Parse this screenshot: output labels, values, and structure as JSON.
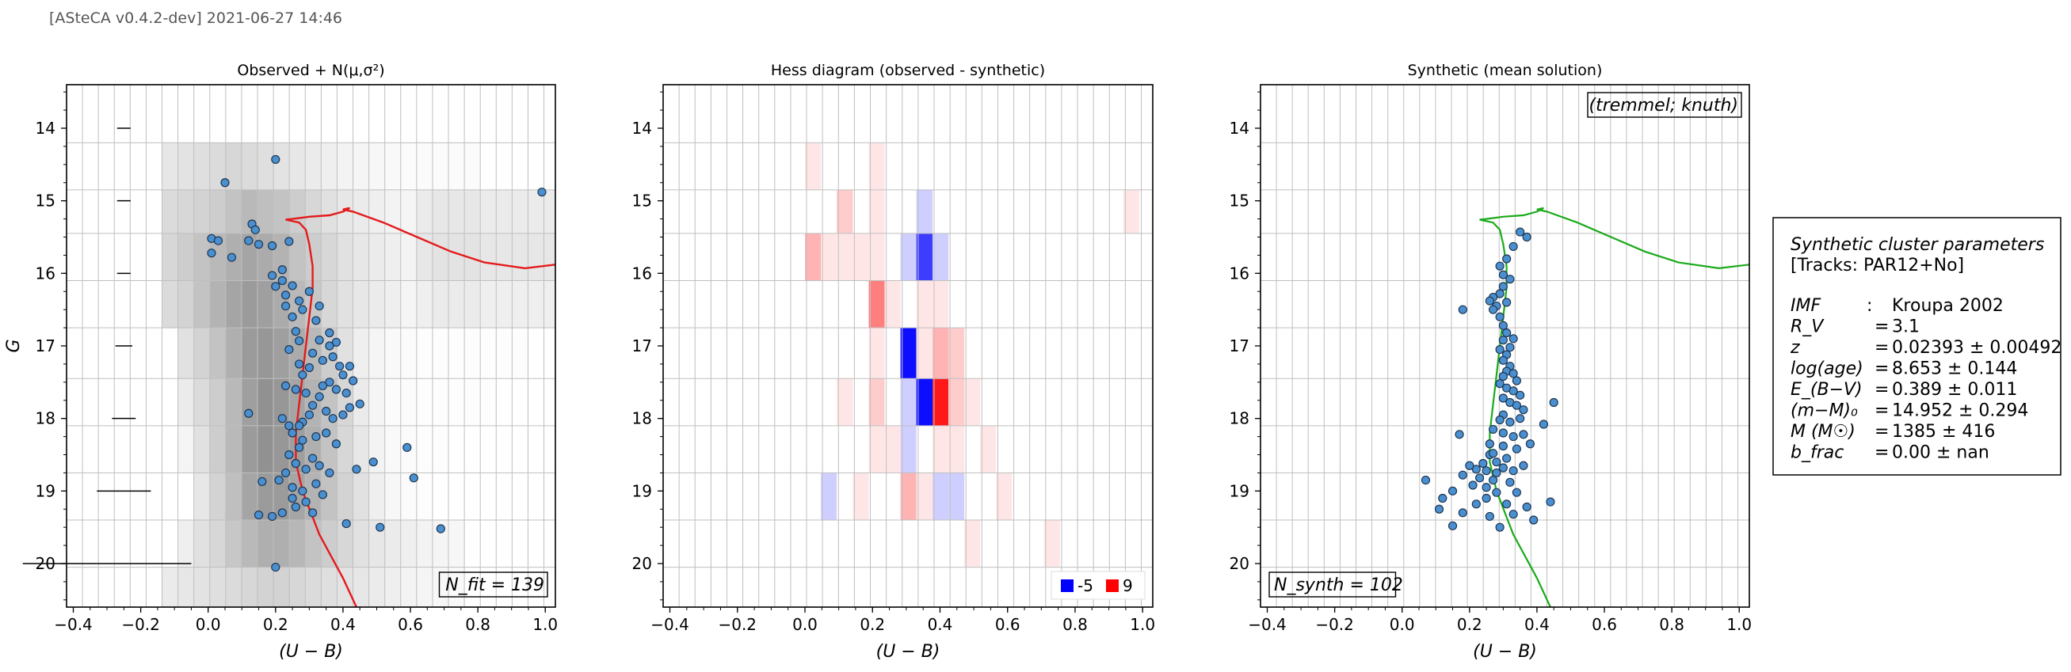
{
  "header": "[ASteCA v0.4.2-dev] 2021-06-27 14:46",
  "chart_data": [
    {
      "type": "scatter",
      "title": "Observed + N(μ,σ²)",
      "xlabel": "(U − B)",
      "ylabel": "G",
      "xlim": [
        -0.42,
        1.03
      ],
      "ylim": [
        20.6,
        13.4
      ],
      "y_inverted": true,
      "xticks": [
        -0.4,
        -0.2,
        0.0,
        0.2,
        0.4,
        0.6,
        0.8,
        1.0
      ],
      "yticks": [
        14,
        15,
        16,
        17,
        18,
        19,
        20
      ],
      "grid": true,
      "annotation": "N_fit = 139",
      "error_bars": [
        {
          "mag": 14.0,
          "half_width": 0.02
        },
        {
          "mag": 15.0,
          "half_width": 0.02
        },
        {
          "mag": 16.0,
          "half_width": 0.02
        },
        {
          "mag": 17.0,
          "half_width": 0.025
        },
        {
          "mag": 18.0,
          "half_width": 0.035
        },
        {
          "mag": 19.0,
          "half_width": 0.08
        },
        {
          "mag": 20.0,
          "half_width": 0.2
        }
      ],
      "background_density_bins": "grey 2D histogram of the observed CMD, darkest around (U-B) 0.2-0.4, G 16-19",
      "points": [
        [
          0.05,
          14.75
        ],
        [
          0.2,
          14.43
        ],
        [
          0.99,
          14.88
        ],
        [
          0.01,
          15.52
        ],
        [
          0.03,
          15.55
        ],
        [
          0.01,
          15.72
        ],
        [
          0.13,
          15.32
        ],
        [
          0.14,
          15.4
        ],
        [
          0.12,
          15.55
        ],
        [
          0.15,
          15.6
        ],
        [
          0.07,
          15.78
        ],
        [
          0.19,
          15.62
        ],
        [
          0.24,
          15.56
        ],
        [
          0.22,
          15.95
        ],
        [
          0.19,
          16.03
        ],
        [
          0.22,
          16.1
        ],
        [
          0.2,
          16.18
        ],
        [
          0.23,
          16.3
        ],
        [
          0.25,
          16.17
        ],
        [
          0.27,
          16.38
        ],
        [
          0.3,
          16.25
        ],
        [
          0.23,
          16.45
        ],
        [
          0.25,
          16.6
        ],
        [
          0.28,
          16.5
        ],
        [
          0.33,
          16.45
        ],
        [
          0.32,
          16.65
        ],
        [
          0.26,
          16.8
        ],
        [
          0.27,
          16.93
        ],
        [
          0.24,
          17.05
        ],
        [
          0.33,
          16.92
        ],
        [
          0.36,
          16.82
        ],
        [
          0.38,
          16.95
        ],
        [
          0.31,
          17.1
        ],
        [
          0.34,
          17.2
        ],
        [
          0.27,
          17.25
        ],
        [
          0.28,
          17.4
        ],
        [
          0.37,
          17.15
        ],
        [
          0.39,
          17.28
        ],
        [
          0.4,
          17.4
        ],
        [
          0.42,
          17.28
        ],
        [
          0.43,
          17.48
        ],
        [
          0.36,
          17.5
        ],
        [
          0.34,
          17.55
        ],
        [
          0.38,
          17.6
        ],
        [
          0.41,
          17.65
        ],
        [
          0.33,
          17.7
        ],
        [
          0.29,
          17.65
        ],
        [
          0.26,
          17.6
        ],
        [
          0.31,
          17.82
        ],
        [
          0.35,
          17.9
        ],
        [
          0.37,
          18.0
        ],
        [
          0.4,
          17.95
        ],
        [
          0.42,
          17.85
        ],
        [
          0.45,
          17.8
        ],
        [
          0.3,
          17.95
        ],
        [
          0.28,
          18.05
        ],
        [
          0.24,
          18.1
        ],
        [
          0.22,
          18.0
        ],
        [
          0.25,
          18.2
        ],
        [
          0.28,
          18.3
        ],
        [
          0.32,
          18.25
        ],
        [
          0.35,
          18.2
        ],
        [
          0.38,
          18.35
        ],
        [
          0.27,
          18.4
        ],
        [
          0.24,
          18.5
        ],
        [
          0.26,
          18.62
        ],
        [
          0.29,
          18.7
        ],
        [
          0.31,
          18.55
        ],
        [
          0.33,
          18.65
        ],
        [
          0.36,
          18.75
        ],
        [
          0.23,
          18.75
        ],
        [
          0.21,
          18.85
        ],
        [
          0.25,
          18.95
        ],
        [
          0.28,
          19.0
        ],
        [
          0.32,
          18.9
        ],
        [
          0.34,
          19.05
        ],
        [
          0.29,
          19.15
        ],
        [
          0.26,
          19.22
        ],
        [
          0.22,
          19.3
        ],
        [
          0.19,
          19.35
        ],
        [
          0.31,
          19.3
        ],
        [
          0.41,
          19.45
        ],
        [
          0.12,
          17.93
        ],
        [
          0.16,
          18.87
        ],
        [
          0.15,
          19.33
        ],
        [
          0.49,
          18.6
        ],
        [
          0.59,
          18.4
        ],
        [
          0.61,
          18.82
        ],
        [
          0.44,
          18.7
        ],
        [
          0.51,
          19.5
        ],
        [
          0.69,
          19.52
        ],
        [
          0.2,
          20.05
        ],
        [
          0.27,
          18.1
        ],
        [
          0.3,
          17.3
        ],
        [
          0.36,
          17.0
        ],
        [
          0.23,
          17.55
        ],
        [
          0.25,
          19.1
        ]
      ],
      "isochrone_color": "#e41a1c"
    },
    {
      "type": "heatmap",
      "title": "Hess diagram (observed - synthetic)",
      "xlabel": "(U − B)",
      "xlim": [
        -0.42,
        1.03
      ],
      "ylim": [
        20.6,
        13.4
      ],
      "xticks": [
        -0.4,
        -0.2,
        0.0,
        0.2,
        0.4,
        0.6,
        0.8,
        1.0
      ],
      "yticks": [
        14,
        15,
        16,
        17,
        18,
        19,
        20
      ],
      "grid": true,
      "colorscale": {
        "min": -5,
        "max": 9,
        "neg_color": "#0000ff",
        "pos_color": "#ff0000"
      },
      "legend": [
        {
          "label": "-5",
          "color": "#0000ff"
        },
        {
          "label": "9",
          "color": "#ff0000"
        }
      ],
      "legend_position": "lower-right",
      "cells": [
        {
          "x0": 0.0,
          "x1": 0.047,
          "y0": 14.2,
          "y1": 14.85,
          "v": 1
        },
        {
          "x0": 0.189,
          "x1": 0.236,
          "y0": 14.2,
          "y1": 14.85,
          "v": 1
        },
        {
          "x0": 0.094,
          "x1": 0.142,
          "y0": 14.85,
          "y1": 15.45,
          "v": 2
        },
        {
          "x0": 0.189,
          "x1": 0.236,
          "y0": 14.85,
          "y1": 15.45,
          "v": 1
        },
        {
          "x0": 0.33,
          "x1": 0.378,
          "y0": 14.85,
          "y1": 15.45,
          "v": -1
        },
        {
          "x0": 0.943,
          "x1": 0.99,
          "y0": 14.85,
          "y1": 15.45,
          "v": 1
        },
        {
          "x0": 0.0,
          "x1": 0.047,
          "y0": 15.45,
          "y1": 16.1,
          "v": 3
        },
        {
          "x0": 0.047,
          "x1": 0.094,
          "y0": 15.45,
          "y1": 16.1,
          "v": 1
        },
        {
          "x0": 0.094,
          "x1": 0.142,
          "y0": 15.45,
          "y1": 16.1,
          "v": 1
        },
        {
          "x0": 0.142,
          "x1": 0.189,
          "y0": 15.45,
          "y1": 16.1,
          "v": 1
        },
        {
          "x0": 0.189,
          "x1": 0.236,
          "y0": 15.45,
          "y1": 16.1,
          "v": 1
        },
        {
          "x0": 0.283,
          "x1": 0.33,
          "y0": 15.45,
          "y1": 16.1,
          "v": -1
        },
        {
          "x0": 0.33,
          "x1": 0.378,
          "y0": 15.45,
          "y1": 16.1,
          "v": -4
        },
        {
          "x0": 0.378,
          "x1": 0.425,
          "y0": 15.45,
          "y1": 16.1,
          "v": -1
        },
        {
          "x0": 0.189,
          "x1": 0.236,
          "y0": 16.1,
          "y1": 16.75,
          "v": 5
        },
        {
          "x0": 0.236,
          "x1": 0.283,
          "y0": 16.1,
          "y1": 16.75,
          "v": 1
        },
        {
          "x0": 0.33,
          "x1": 0.378,
          "y0": 16.1,
          "y1": 16.75,
          "v": 1
        },
        {
          "x0": 0.378,
          "x1": 0.425,
          "y0": 16.1,
          "y1": 16.75,
          "v": 1
        },
        {
          "x0": 0.189,
          "x1": 0.236,
          "y0": 16.75,
          "y1": 17.45,
          "v": 1
        },
        {
          "x0": 0.283,
          "x1": 0.33,
          "y0": 16.75,
          "y1": 17.45,
          "v": -5
        },
        {
          "x0": 0.33,
          "x1": 0.378,
          "y0": 16.75,
          "y1": 17.45,
          "v": 1
        },
        {
          "x0": 0.378,
          "x1": 0.425,
          "y0": 16.75,
          "y1": 17.45,
          "v": 3
        },
        {
          "x0": 0.425,
          "x1": 0.472,
          "y0": 16.75,
          "y1": 17.45,
          "v": 2
        },
        {
          "x0": 0.094,
          "x1": 0.142,
          "y0": 17.45,
          "y1": 18.1,
          "v": 1
        },
        {
          "x0": 0.189,
          "x1": 0.236,
          "y0": 17.45,
          "y1": 18.1,
          "v": 2
        },
        {
          "x0": 0.283,
          "x1": 0.33,
          "y0": 17.45,
          "y1": 18.1,
          "v": -1
        },
        {
          "x0": 0.33,
          "x1": 0.378,
          "y0": 17.45,
          "y1": 18.1,
          "v": -5
        },
        {
          "x0": 0.378,
          "x1": 0.425,
          "y0": 17.45,
          "y1": 18.1,
          "v": 9
        },
        {
          "x0": 0.425,
          "x1": 0.472,
          "y0": 17.45,
          "y1": 18.1,
          "v": 2
        },
        {
          "x0": 0.472,
          "x1": 0.519,
          "y0": 17.45,
          "y1": 18.1,
          "v": 1
        },
        {
          "x0": 0.189,
          "x1": 0.236,
          "y0": 18.1,
          "y1": 18.75,
          "v": 1
        },
        {
          "x0": 0.236,
          "x1": 0.283,
          "y0": 18.1,
          "y1": 18.75,
          "v": 1
        },
        {
          "x0": 0.283,
          "x1": 0.33,
          "y0": 18.1,
          "y1": 18.75,
          "v": -1
        },
        {
          "x0": 0.378,
          "x1": 0.425,
          "y0": 18.1,
          "y1": 18.75,
          "v": 1
        },
        {
          "x0": 0.425,
          "x1": 0.472,
          "y0": 18.1,
          "y1": 18.75,
          "v": 1
        },
        {
          "x0": 0.519,
          "x1": 0.566,
          "y0": 18.1,
          "y1": 18.75,
          "v": 1
        },
        {
          "x0": 0.047,
          "x1": 0.094,
          "y0": 18.75,
          "y1": 19.4,
          "v": -1
        },
        {
          "x0": 0.142,
          "x1": 0.189,
          "y0": 18.75,
          "y1": 19.4,
          "v": 1
        },
        {
          "x0": 0.283,
          "x1": 0.33,
          "y0": 18.75,
          "y1": 19.4,
          "v": 3
        },
        {
          "x0": 0.33,
          "x1": 0.378,
          "y0": 18.75,
          "y1": 19.4,
          "v": 1
        },
        {
          "x0": 0.378,
          "x1": 0.425,
          "y0": 18.75,
          "y1": 19.4,
          "v": -1
        },
        {
          "x0": 0.425,
          "x1": 0.472,
          "y0": 18.75,
          "y1": 19.4,
          "v": -1
        },
        {
          "x0": 0.566,
          "x1": 0.613,
          "y0": 18.75,
          "y1": 19.4,
          "v": 1
        },
        {
          "x0": 0.472,
          "x1": 0.519,
          "y0": 19.4,
          "y1": 20.05,
          "v": 1
        },
        {
          "x0": 0.708,
          "x1": 0.755,
          "y0": 19.4,
          "y1": 20.05,
          "v": 1
        }
      ]
    },
    {
      "type": "scatter",
      "title": "Synthetic (mean solution)",
      "xlabel": "(U − B)",
      "xlim": [
        -0.42,
        1.03
      ],
      "ylim": [
        20.6,
        13.4
      ],
      "xticks": [
        -0.4,
        -0.2,
        0.0,
        0.2,
        0.4,
        0.6,
        0.8,
        1.0
      ],
      "yticks": [
        14,
        15,
        16,
        17,
        18,
        19,
        20
      ],
      "grid": true,
      "annotation_top": "(tremmel; knuth)",
      "annotation": "N_synth = 102",
      "isochrone_color": "#1aaa1a",
      "points": [
        [
          0.35,
          15.43
        ],
        [
          0.37,
          15.5
        ],
        [
          0.33,
          15.63
        ],
        [
          0.31,
          15.8
        ],
        [
          0.29,
          15.9
        ],
        [
          0.3,
          16.02
        ],
        [
          0.32,
          16.08
        ],
        [
          0.3,
          16.18
        ],
        [
          0.29,
          16.28
        ],
        [
          0.27,
          16.33
        ],
        [
          0.26,
          16.38
        ],
        [
          0.28,
          16.45
        ],
        [
          0.27,
          16.5
        ],
        [
          0.18,
          16.5
        ],
        [
          0.29,
          16.6
        ],
        [
          0.3,
          16.72
        ],
        [
          0.31,
          16.82
        ],
        [
          0.3,
          16.92
        ],
        [
          0.32,
          17.02
        ],
        [
          0.31,
          17.12
        ],
        [
          0.3,
          17.2
        ],
        [
          0.32,
          17.28
        ],
        [
          0.31,
          17.35
        ],
        [
          0.3,
          17.42
        ],
        [
          0.33,
          17.38
        ],
        [
          0.34,
          17.48
        ],
        [
          0.29,
          17.52
        ],
        [
          0.31,
          17.58
        ],
        [
          0.33,
          17.62
        ],
        [
          0.35,
          17.68
        ],
        [
          0.3,
          17.72
        ],
        [
          0.32,
          17.78
        ],
        [
          0.34,
          17.82
        ],
        [
          0.36,
          17.88
        ],
        [
          0.45,
          17.78
        ],
        [
          0.3,
          17.95
        ],
        [
          0.29,
          18.02
        ],
        [
          0.32,
          18.05
        ],
        [
          0.35,
          18.0
        ],
        [
          0.42,
          18.08
        ],
        [
          0.27,
          18.15
        ],
        [
          0.3,
          18.2
        ],
        [
          0.33,
          18.25
        ],
        [
          0.36,
          18.22
        ],
        [
          0.26,
          18.35
        ],
        [
          0.3,
          18.38
        ],
        [
          0.34,
          18.42
        ],
        [
          0.38,
          18.35
        ],
        [
          0.17,
          18.22
        ],
        [
          0.26,
          18.5
        ],
        [
          0.28,
          18.6
        ],
        [
          0.31,
          18.55
        ],
        [
          0.24,
          18.62
        ],
        [
          0.22,
          18.7
        ],
        [
          0.25,
          18.72
        ],
        [
          0.28,
          18.75
        ],
        [
          0.3,
          18.68
        ],
        [
          0.33,
          18.72
        ],
        [
          0.36,
          18.65
        ],
        [
          0.2,
          18.65
        ],
        [
          0.18,
          18.78
        ],
        [
          0.23,
          18.82
        ],
        [
          0.27,
          18.85
        ],
        [
          0.32,
          18.88
        ],
        [
          0.07,
          18.85
        ],
        [
          0.21,
          18.92
        ],
        [
          0.25,
          18.95
        ],
        [
          0.28,
          19.02
        ],
        [
          0.34,
          19.02
        ],
        [
          0.12,
          19.1
        ],
        [
          0.15,
          19.0
        ],
        [
          0.22,
          19.18
        ],
        [
          0.31,
          19.18
        ],
        [
          0.37,
          19.22
        ],
        [
          0.44,
          19.15
        ],
        [
          0.11,
          19.25
        ],
        [
          0.18,
          19.3
        ],
        [
          0.26,
          19.35
        ],
        [
          0.33,
          19.32
        ],
        [
          0.39,
          19.4
        ],
        [
          0.15,
          19.48
        ],
        [
          0.29,
          19.5
        ],
        [
          0.25,
          19.1
        ],
        [
          0.27,
          18.48
        ],
        [
          0.29,
          17.05
        ],
        [
          0.31,
          16.4
        ],
        [
          0.33,
          16.9
        ]
      ],
      "parameters_box": {
        "title": "Synthetic cluster parameters",
        "tracks": "[Tracks: PAR12+No]",
        "rows": [
          {
            "label": "IMF",
            "sep": ":",
            "value": "Kroupa 2002"
          },
          {
            "label": "R_V",
            "sep": "=",
            "value": "3.1"
          },
          {
            "label": "z",
            "sep": "=",
            "value": "0.02393 ± 0.00492"
          },
          {
            "label": "log(age)",
            "sep": "=",
            "value": "8.653 ± 0.144"
          },
          {
            "label": "E_(B−V)",
            "sep": "=",
            "value": "0.389 ± 0.011"
          },
          {
            "label": "(m−M)₀",
            "sep": "=",
            "value": "14.952 ± 0.294"
          },
          {
            "label": "M (M☉)",
            "sep": "=",
            "value": "1385 ± 416"
          },
          {
            "label": "b_frac",
            "sep": "=",
            "value": "0.00 ± nan"
          }
        ]
      }
    }
  ]
}
